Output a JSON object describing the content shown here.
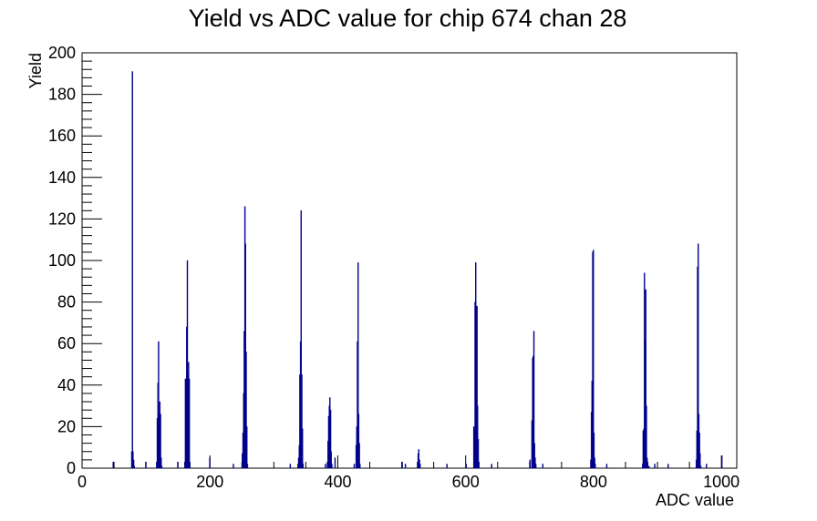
{
  "chart_data": {
    "type": "bar",
    "title": "Yield vs ADC value for chip 674 chan 28",
    "xlabel": "ADC value",
    "ylabel": "Yield",
    "xlim": [
      0,
      1024
    ],
    "ylim": [
      0,
      200
    ],
    "x_ticks": [
      0,
      200,
      400,
      600,
      800,
      1000
    ],
    "y_ticks": [
      0,
      20,
      40,
      60,
      80,
      100,
      120,
      140,
      160,
      180,
      200
    ],
    "grid": false,
    "legend": "none",
    "color": "#00008b",
    "series": [
      {
        "bins": [
          [
            48,
            3
          ],
          [
            77,
            8
          ],
          [
            78,
            191
          ],
          [
            79,
            8
          ],
          [
            80,
            4
          ],
          [
            81,
            1
          ],
          [
            99,
            3
          ],
          [
            116,
            3
          ],
          [
            117,
            24
          ],
          [
            118,
            41
          ],
          [
            119,
            61
          ],
          [
            120,
            26
          ],
          [
            121,
            32
          ],
          [
            122,
            26
          ],
          [
            123,
            5
          ],
          [
            124,
            1
          ],
          [
            149,
            3
          ],
          [
            160,
            3
          ],
          [
            161,
            43
          ],
          [
            162,
            43
          ],
          [
            163,
            68
          ],
          [
            164,
            100
          ],
          [
            165,
            45
          ],
          [
            166,
            51
          ],
          [
            167,
            43
          ],
          [
            168,
            3
          ],
          [
            199,
            5
          ],
          [
            236,
            2
          ],
          [
            250,
            7
          ],
          [
            251,
            17
          ],
          [
            252,
            36
          ],
          [
            253,
            66
          ],
          [
            254,
            126
          ],
          [
            255,
            108
          ],
          [
            256,
            56
          ],
          [
            257,
            20
          ],
          [
            258,
            2
          ],
          [
            325,
            2
          ],
          [
            337,
            2
          ],
          [
            338,
            5
          ],
          [
            339,
            11
          ],
          [
            340,
            45
          ],
          [
            341,
            61
          ],
          [
            342,
            124
          ],
          [
            343,
            45
          ],
          [
            344,
            19
          ],
          [
            345,
            2
          ],
          [
            380,
            2
          ],
          [
            383,
            3
          ],
          [
            384,
            13
          ],
          [
            385,
            25
          ],
          [
            386,
            30
          ],
          [
            387,
            34
          ],
          [
            388,
            28
          ],
          [
            389,
            8
          ],
          [
            390,
            2
          ],
          [
            395,
            5
          ],
          [
            425,
            2
          ],
          [
            428,
            11
          ],
          [
            429,
            20
          ],
          [
            430,
            61
          ],
          [
            431,
            99
          ],
          [
            432,
            26
          ],
          [
            433,
            12
          ],
          [
            434,
            2
          ],
          [
            500,
            3
          ],
          [
            505,
            2
          ],
          [
            524,
            3
          ],
          [
            525,
            7
          ],
          [
            526,
            9
          ],
          [
            527,
            4
          ],
          [
            528,
            2
          ],
          [
            570,
            2
          ],
          [
            600,
            2
          ],
          [
            612,
            20
          ],
          [
            613,
            19
          ],
          [
            614,
            80
          ],
          [
            615,
            99
          ],
          [
            616,
            78
          ],
          [
            617,
            78
          ],
          [
            618,
            30
          ],
          [
            619,
            14
          ],
          [
            620,
            3
          ],
          [
            640,
            2
          ],
          [
            700,
            4
          ],
          [
            703,
            23
          ],
          [
            704,
            53
          ],
          [
            705,
            54
          ],
          [
            706,
            66
          ],
          [
            707,
            12
          ],
          [
            708,
            5
          ],
          [
            709,
            2
          ],
          [
            720,
            2
          ],
          [
            795,
            4
          ],
          [
            796,
            27
          ],
          [
            797,
            42
          ],
          [
            798,
            104
          ],
          [
            799,
            105
          ],
          [
            800,
            17
          ],
          [
            801,
            5
          ],
          [
            802,
            2
          ],
          [
            820,
            2
          ],
          [
            876,
            2
          ],
          [
            877,
            18
          ],
          [
            878,
            19
          ],
          [
            879,
            94
          ],
          [
            880,
            61
          ],
          [
            881,
            86
          ],
          [
            882,
            30
          ],
          [
            883,
            5
          ],
          [
            884,
            3
          ],
          [
            886,
            1
          ],
          [
            895,
            2
          ],
          [
            916,
            2
          ],
          [
            960,
            4
          ],
          [
            961,
            18
          ],
          [
            962,
            97
          ],
          [
            963,
            108
          ],
          [
            964,
            26
          ],
          [
            965,
            17
          ],
          [
            966,
            7
          ],
          [
            967,
            1
          ],
          [
            976,
            2
          ],
          [
            1000,
            6
          ]
        ]
      }
    ]
  }
}
